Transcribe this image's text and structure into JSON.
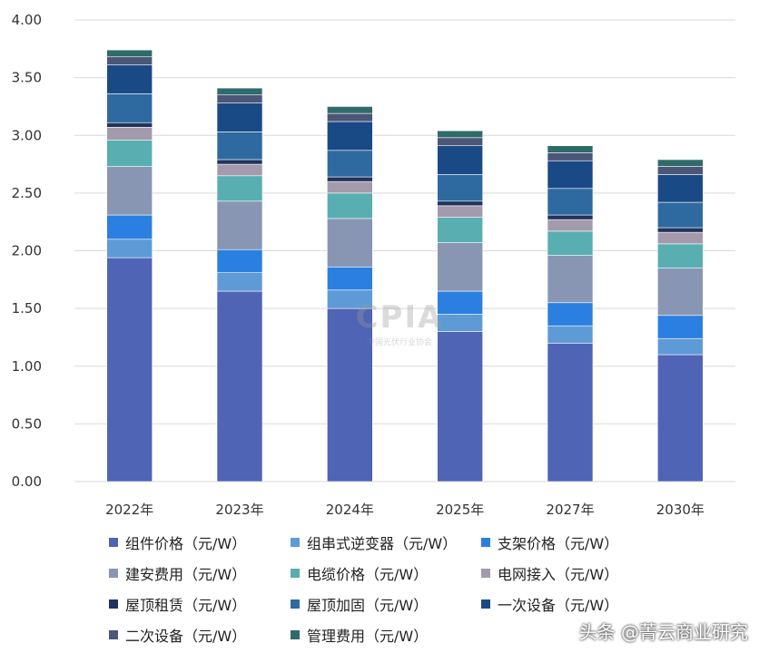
{
  "chart_data": {
    "type": "bar",
    "stacked": true,
    "title": "",
    "xlabel": "",
    "ylabel": "",
    "ylim": [
      0,
      4
    ],
    "yticks": [
      "0.00",
      "0.50",
      "1.00",
      "1.50",
      "2.00",
      "2.50",
      "3.00",
      "3.50",
      "4.00"
    ],
    "grid": true,
    "legend_position": "bottom",
    "categories": [
      "2022年",
      "2023年",
      "2024年",
      "2025年",
      "2027年",
      "2030年"
    ],
    "series": [
      {
        "name": "组件价格（元/W）",
        "color": "#4f64b5",
        "values": [
          1.94,
          1.65,
          1.5,
          1.3,
          1.2,
          1.1
        ]
      },
      {
        "name": "组串式逆变器（元/W）",
        "color": "#5e9bd6",
        "values": [
          0.16,
          0.16,
          0.16,
          0.15,
          0.15,
          0.14
        ]
      },
      {
        "name": "支架价格（元/W）",
        "color": "#2b7fe0",
        "values": [
          0.21,
          0.2,
          0.2,
          0.2,
          0.2,
          0.2
        ]
      },
      {
        "name": "建安费用（元/W）",
        "color": "#8896b3",
        "values": [
          0.42,
          0.42,
          0.42,
          0.42,
          0.41,
          0.41
        ]
      },
      {
        "name": "电缆价格（元/W）",
        "color": "#58aeb0",
        "values": [
          0.23,
          0.22,
          0.22,
          0.22,
          0.21,
          0.21
        ]
      },
      {
        "name": "电网接入（元/W）",
        "color": "#a39aab",
        "values": [
          0.11,
          0.1,
          0.1,
          0.1,
          0.1,
          0.1
        ]
      },
      {
        "name": "屋顶租赁（元/W）",
        "color": "#22325e",
        "values": [
          0.04,
          0.04,
          0.04,
          0.04,
          0.04,
          0.04
        ]
      },
      {
        "name": "屋顶加固（元/W）",
        "color": "#2e6aa0",
        "values": [
          0.25,
          0.24,
          0.23,
          0.23,
          0.23,
          0.22
        ]
      },
      {
        "name": "一次设备（元/W）",
        "color": "#1a4a86",
        "values": [
          0.25,
          0.25,
          0.25,
          0.25,
          0.24,
          0.24
        ]
      },
      {
        "name": "二次设备（元/W）",
        "color": "#4c5676",
        "values": [
          0.07,
          0.07,
          0.07,
          0.07,
          0.07,
          0.07
        ]
      },
      {
        "name": "管理费用（元/W）",
        "color": "#2f6b6b",
        "values": [
          0.06,
          0.06,
          0.06,
          0.06,
          0.06,
          0.06
        ]
      }
    ]
  },
  "logo_text": "CPIA",
  "logo_subtext": "中国光伏行业协会",
  "watermark": "头条 @菁云商业研究"
}
